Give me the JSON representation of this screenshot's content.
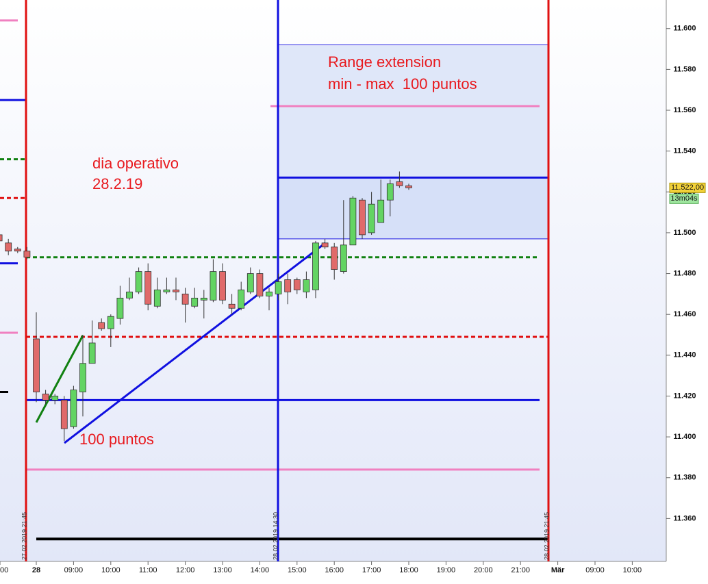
{
  "chart_data": {
    "type": "candlestick",
    "categories": [
      "21:00",
      "21:15",
      "21:30",
      "21:45",
      "08:00",
      "08:15",
      "08:30",
      "08:45",
      "09:00",
      "09:15",
      "09:30",
      "09:45",
      "10:00",
      "10:15",
      "10:30",
      "10:45",
      "11:00",
      "11:15",
      "11:30",
      "11:45",
      "12:00",
      "12:15",
      "12:30",
      "12:45",
      "13:00",
      "13:15",
      "13:30",
      "13:45",
      "14:00",
      "14:15",
      "14:30",
      "14:45",
      "15:00",
      "15:15",
      "15:30",
      "15:45",
      "16:00",
      "16:15",
      "16:30",
      "16:45",
      "17:00",
      "17:15",
      "17:30",
      "17:45",
      "18:00"
    ],
    "open": [
      11499,
      11495,
      11492,
      11491,
      11448,
      11421,
      11418,
      11418,
      11405,
      11422,
      11436,
      11456,
      11453,
      11458,
      11468,
      11471,
      11481,
      11464,
      11471,
      11472,
      11470,
      11464,
      11467,
      11467,
      11481,
      11465,
      11463,
      11471,
      11480,
      11469,
      11470,
      11477,
      11477,
      11471,
      11472,
      11495,
      11493,
      11481,
      11494,
      11516,
      11500,
      11505,
      11516,
      11525,
      11523
    ],
    "high": [
      11501,
      11497,
      11493,
      11493,
      11461,
      11423,
      11421,
      11420,
      11425,
      11450,
      11457,
      11458,
      11460,
      11474,
      11478,
      11483,
      11485,
      11478,
      11478,
      11478,
      11473,
      11473,
      11472,
      11487,
      11485,
      11470,
      11476,
      11483,
      11482,
      11473,
      11480,
      11480,
      11478,
      11481,
      11496,
      11497,
      11495,
      11516,
      11518,
      11517,
      11520,
      11526,
      11526,
      11530,
      11524
    ],
    "low": [
      11495,
      11489,
      11490,
      11487,
      11417,
      11416,
      11416,
      11398,
      11404,
      11410,
      11436,
      11452,
      11444,
      11455,
      11467,
      11470,
      11462,
      11463,
      11470,
      11467,
      11456,
      11463,
      11458,
      11466,
      11465,
      11460,
      11462,
      11470,
      11468,
      11462,
      11467,
      11465,
      11470,
      11468,
      11468,
      11492,
      11477,
      11480,
      11494,
      11497,
      11499,
      11505,
      11508,
      11522,
      11521
    ],
    "close": [
      11496,
      11491,
      11491,
      11488,
      11422,
      11418,
      11420,
      11404,
      11423,
      11436,
      11446,
      11453,
      11459,
      11468,
      11471,
      11481,
      11465,
      11472,
      11472,
      11471,
      11465,
      11468,
      11468,
      11481,
      11467,
      11463,
      11472,
      11480,
      11469,
      11471,
      11476,
      11471,
      11472,
      11477,
      11495,
      11493,
      11482,
      11494,
      11517,
      11499,
      11514,
      11516,
      11524,
      11523,
      11522
    ],
    "up_color": "#63d463",
    "down_color": "#e06a6a",
    "ylim": [
      11339,
      11614
    ],
    "yticks": [
      {
        "value": 11360,
        "label": "11.360"
      },
      {
        "value": 11380,
        "label": "11.380"
      },
      {
        "value": 11400,
        "label": "11.400"
      },
      {
        "value": 11420,
        "label": "11.420"
      },
      {
        "value": 11440,
        "label": "11.440"
      },
      {
        "value": 11460,
        "label": "11.460"
      },
      {
        "value": 11480,
        "label": "11.480"
      },
      {
        "value": 11500,
        "label": "11.500"
      },
      {
        "value": 11520,
        "label": "11.520"
      },
      {
        "value": 11540,
        "label": "11.540"
      },
      {
        "value": 11560,
        "label": "11.560"
      },
      {
        "value": 11580,
        "label": "11.580"
      },
      {
        "value": 11600,
        "label": "11.600"
      }
    ],
    "xaxis_labels": [
      "00",
      "28",
      "09:00",
      "10:00",
      "11:00",
      "12:00",
      "13:00",
      "14:00",
      "15:00",
      "16:00",
      "17:00",
      "18:00",
      "19:00",
      "20:00",
      "21:00",
      "Mär",
      "09:00",
      "10:00"
    ],
    "last_price": {
      "value": 11522,
      "label": "11.522,00"
    },
    "timer": "13m04s",
    "markers": [
      "27.02.2019 21:45",
      "28.02.2019 14:30",
      "28.02.2019 21:45"
    ],
    "levels": [
      {
        "value": 11604,
        "color": "#f080c0"
      },
      {
        "value": 11565,
        "color": "#1010e0"
      },
      {
        "value": 11536,
        "color": "#108010",
        "dashed": true
      },
      {
        "value": 11517,
        "color": "#e01010",
        "dashed": true
      },
      {
        "value": 11485,
        "color": "#1010e0"
      },
      {
        "value": 11451,
        "color": "#f080c0"
      },
      {
        "value": 11422,
        "color": "#000000"
      },
      {
        "value": 11592,
        "color": "#1010e0"
      },
      {
        "value": 11562,
        "color": "#f080c0"
      },
      {
        "value": 11527,
        "color": "#1010e0"
      },
      {
        "value": 11497,
        "color": "#1010e0"
      },
      {
        "value": 11488,
        "color": "#108010",
        "dashed": true
      },
      {
        "value": 11449,
        "color": "#e01010",
        "dashed": true
      },
      {
        "value": 11418,
        "color": "#1010e0"
      },
      {
        "value": 11384,
        "color": "#f080c0"
      },
      {
        "value": 11350,
        "color": "#000000"
      }
    ],
    "annotations": [
      "Range extension",
      "min - max  100 puntos",
      "dia operativo",
      "28.2.19",
      "100 puntos"
    ]
  }
}
